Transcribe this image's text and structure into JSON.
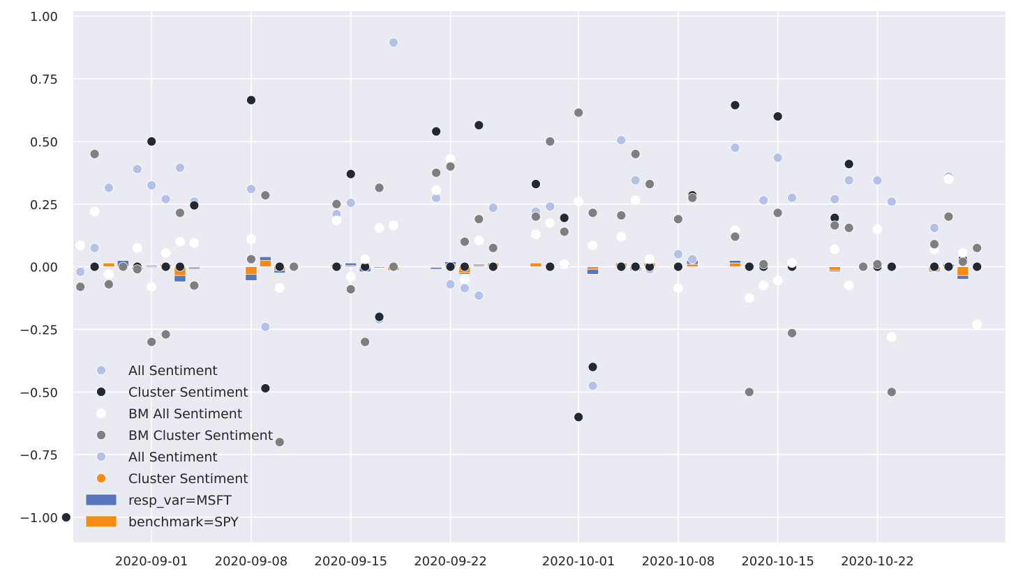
{
  "chart_data": {
    "type": "scatter",
    "title": "",
    "xlabel": "",
    "ylabel": "",
    "grid": true,
    "legend_placement": "lower-left",
    "ylim": [
      -1.1,
      1.02
    ],
    "xlim": [
      "2020-08-26T12:00",
      "2020-10-31T00:00"
    ],
    "y_ticks": [
      1.0,
      0.75,
      0.5,
      0.25,
      0.0,
      -0.25,
      -0.5,
      -0.75,
      -1.0
    ],
    "y_tick_labels": [
      "1.00",
      "0.75",
      "0.50",
      "0.25",
      "0.00",
      "−0.25",
      "−0.50",
      "−0.75",
      "−1.00"
    ],
    "x_ticks": [
      "2020-09-01",
      "2020-09-08",
      "2020-09-15",
      "2020-09-22",
      "2020-10-01",
      "2020-10-08",
      "2020-10-15",
      "2020-10-22"
    ],
    "x_tick_labels": [
      "2020-09-01",
      "2020-09-08",
      "2020-09-15",
      "2020-09-22",
      "2020-10-01",
      "2020-10-08",
      "2020-10-15",
      "2020-10-22"
    ],
    "colors": {
      "all_sentiment": "#b3c1e8",
      "cluster_sentiment": "#232934",
      "bm_all_sentiment": "#ffffff",
      "bm_cluster_sentiment": "#7f7f7f",
      "msft_bar": "#5875bd",
      "spy_bar": "#f58b14",
      "plot_background": "#eaeaf2",
      "grid": "#ffffff"
    },
    "legend": [
      {
        "label": "All Sentiment",
        "kind": "dot",
        "color": "#b3c1e8"
      },
      {
        "label": "Cluster Sentiment",
        "kind": "dot",
        "color": "#232934"
      },
      {
        "label": "BM All Sentiment",
        "kind": "dot",
        "color": "#ffffff"
      },
      {
        "label": "BM Cluster Sentiment",
        "kind": "dot",
        "color": "#7f7f7f"
      },
      {
        "label": "All Sentiment",
        "kind": "dot",
        "color": "#b3c1e8"
      },
      {
        "label": "Cluster Sentiment",
        "kind": "dot",
        "color": "#f58b14"
      },
      {
        "label": "resp_var=MSFT",
        "kind": "bar",
        "color": "#5875bd"
      },
      {
        "label": "benchmark=SPY",
        "kind": "bar",
        "color": "#f58b14"
      }
    ],
    "series": [
      {
        "key": "all_sentiment",
        "points": [
          {
            "x": "2020-08-27",
            "y": -0.02
          },
          {
            "x": "2020-08-28",
            "y": 0.075
          },
          {
            "x": "2020-08-29",
            "y": 0.315
          },
          {
            "x": "2020-08-31",
            "y": 0.39
          },
          {
            "x": "2020-09-01",
            "y": 0.325
          },
          {
            "x": "2020-09-02",
            "y": 0.27
          },
          {
            "x": "2020-09-03",
            "y": 0.395
          },
          {
            "x": "2020-09-04",
            "y": 0.26
          },
          {
            "x": "2020-09-08",
            "y": 0.31
          },
          {
            "x": "2020-09-09",
            "y": -0.24
          },
          {
            "x": "2020-09-14",
            "y": 0.21
          },
          {
            "x": "2020-09-15",
            "y": 0.255
          },
          {
            "x": "2020-09-17",
            "y": -0.21
          },
          {
            "x": "2020-09-18",
            "y": 0.895
          },
          {
            "x": "2020-09-21",
            "y": 0.275
          },
          {
            "x": "2020-09-22",
            "y": -0.07
          },
          {
            "x": "2020-09-23",
            "y": -0.085
          },
          {
            "x": "2020-09-24",
            "y": -0.115
          },
          {
            "x": "2020-09-25",
            "y": 0.235
          },
          {
            "x": "2020-09-28",
            "y": 0.22
          },
          {
            "x": "2020-09-29",
            "y": 0.24
          },
          {
            "x": "2020-10-02",
            "y": -0.475
          },
          {
            "x": "2020-10-04",
            "y": 0.505
          },
          {
            "x": "2020-10-05",
            "y": 0.345
          },
          {
            "x": "2020-10-06",
            "y": -0.01
          },
          {
            "x": "2020-10-08",
            "y": 0.05
          },
          {
            "x": "2020-10-09",
            "y": 0.03
          },
          {
            "x": "2020-10-12",
            "y": 0.475
          },
          {
            "x": "2020-10-14",
            "y": 0.265
          },
          {
            "x": "2020-10-15",
            "y": 0.435
          },
          {
            "x": "2020-10-16",
            "y": 0.275
          },
          {
            "x": "2020-10-19",
            "y": 0.27
          },
          {
            "x": "2020-10-20",
            "y": 0.345
          },
          {
            "x": "2020-10-22",
            "y": 0.345
          },
          {
            "x": "2020-10-23",
            "y": 0.26
          },
          {
            "x": "2020-10-26",
            "y": 0.155
          },
          {
            "x": "2020-10-27",
            "y": 0.36
          }
        ]
      },
      {
        "key": "cluster_sentiment",
        "points": [
          {
            "x": "2020-08-26",
            "y": -1.0
          },
          {
            "x": "2020-08-28",
            "y": 0.0
          },
          {
            "x": "2020-08-31",
            "y": 0.0
          },
          {
            "x": "2020-09-01",
            "y": 0.5
          },
          {
            "x": "2020-09-02",
            "y": 0.0
          },
          {
            "x": "2020-09-03",
            "y": 0.0
          },
          {
            "x": "2020-09-04",
            "y": 0.245
          },
          {
            "x": "2020-09-08",
            "y": 0.665
          },
          {
            "x": "2020-09-09",
            "y": -0.485
          },
          {
            "x": "2020-09-10",
            "y": 0.0
          },
          {
            "x": "2020-09-14",
            "y": 0.0
          },
          {
            "x": "2020-09-15",
            "y": 0.37
          },
          {
            "x": "2020-09-16",
            "y": 0.0
          },
          {
            "x": "2020-09-17",
            "y": -0.2
          },
          {
            "x": "2020-09-21",
            "y": 0.54
          },
          {
            "x": "2020-09-22",
            "y": 0.0
          },
          {
            "x": "2020-09-23",
            "y": 0.0
          },
          {
            "x": "2020-09-24",
            "y": 0.565
          },
          {
            "x": "2020-09-25",
            "y": 0.0
          },
          {
            "x": "2020-09-28",
            "y": 0.33
          },
          {
            "x": "2020-09-29",
            "y": 0.0
          },
          {
            "x": "2020-09-30",
            "y": 0.195
          },
          {
            "x": "2020-10-01",
            "y": -0.6
          },
          {
            "x": "2020-10-02",
            "y": -0.4
          },
          {
            "x": "2020-10-04",
            "y": 0.0
          },
          {
            "x": "2020-10-05",
            "y": 0.0
          },
          {
            "x": "2020-10-06",
            "y": 0.0
          },
          {
            "x": "2020-10-08",
            "y": 0.0
          },
          {
            "x": "2020-10-09",
            "y": 0.285
          },
          {
            "x": "2020-10-12",
            "y": 0.645
          },
          {
            "x": "2020-10-13",
            "y": 0.0
          },
          {
            "x": "2020-10-14",
            "y": 0.0
          },
          {
            "x": "2020-10-15",
            "y": 0.6
          },
          {
            "x": "2020-10-16",
            "y": 0.0
          },
          {
            "x": "2020-10-19",
            "y": 0.195
          },
          {
            "x": "2020-10-20",
            "y": 0.41
          },
          {
            "x": "2020-10-22",
            "y": 0.0
          },
          {
            "x": "2020-10-23",
            "y": 0.0
          },
          {
            "x": "2020-10-26",
            "y": 0.0
          },
          {
            "x": "2020-10-27",
            "y": 0.0
          },
          {
            "x": "2020-10-28",
            "y": 0.03
          },
          {
            "x": "2020-10-29",
            "y": 0.0
          }
        ]
      },
      {
        "key": "bm_all_sentiment",
        "points": [
          {
            "x": "2020-08-27",
            "y": 0.085
          },
          {
            "x": "2020-08-28",
            "y": 0.22
          },
          {
            "x": "2020-08-29",
            "y": -0.03
          },
          {
            "x": "2020-08-31",
            "y": 0.075
          },
          {
            "x": "2020-09-01",
            "y": -0.08
          },
          {
            "x": "2020-09-02",
            "y": 0.055
          },
          {
            "x": "2020-09-03",
            "y": 0.1
          },
          {
            "x": "2020-09-04",
            "y": 0.095
          },
          {
            "x": "2020-09-08",
            "y": 0.11
          },
          {
            "x": "2020-09-10",
            "y": -0.085
          },
          {
            "x": "2020-09-14",
            "y": 0.185
          },
          {
            "x": "2020-09-15",
            "y": -0.04
          },
          {
            "x": "2020-09-16",
            "y": 0.03
          },
          {
            "x": "2020-09-17",
            "y": 0.155
          },
          {
            "x": "2020-09-18",
            "y": 0.165
          },
          {
            "x": "2020-09-21",
            "y": 0.305
          },
          {
            "x": "2020-09-22",
            "y": 0.43
          },
          {
            "x": "2020-09-23",
            "y": -0.05
          },
          {
            "x": "2020-09-24",
            "y": 0.105
          },
          {
            "x": "2020-09-28",
            "y": 0.13
          },
          {
            "x": "2020-09-29",
            "y": 0.175
          },
          {
            "x": "2020-09-30",
            "y": 0.01
          },
          {
            "x": "2020-10-01",
            "y": 0.26
          },
          {
            "x": "2020-10-02",
            "y": 0.085
          },
          {
            "x": "2020-10-04",
            "y": 0.12
          },
          {
            "x": "2020-10-05",
            "y": 0.265
          },
          {
            "x": "2020-10-06",
            "y": 0.03
          },
          {
            "x": "2020-10-08",
            "y": -0.085
          },
          {
            "x": "2020-10-12",
            "y": 0.145
          },
          {
            "x": "2020-10-13",
            "y": -0.125
          },
          {
            "x": "2020-10-14",
            "y": -0.075
          },
          {
            "x": "2020-10-15",
            "y": -0.055
          },
          {
            "x": "2020-10-16",
            "y": 0.015
          },
          {
            "x": "2020-10-19",
            "y": 0.07
          },
          {
            "x": "2020-10-20",
            "y": -0.075
          },
          {
            "x": "2020-10-22",
            "y": 0.15
          },
          {
            "x": "2020-10-23",
            "y": -0.28
          },
          {
            "x": "2020-10-26",
            "y": 0.07
          },
          {
            "x": "2020-10-27",
            "y": 0.35
          },
          {
            "x": "2020-10-28",
            "y": 0.055
          },
          {
            "x": "2020-10-29",
            "y": -0.23
          }
        ]
      },
      {
        "key": "bm_cluster_sentiment",
        "points": [
          {
            "x": "2020-08-27",
            "y": -0.08
          },
          {
            "x": "2020-08-28",
            "y": 0.45
          },
          {
            "x": "2020-08-29",
            "y": -0.07
          },
          {
            "x": "2020-08-30",
            "y": 0.0
          },
          {
            "x": "2020-08-31",
            "y": -0.01
          },
          {
            "x": "2020-09-01",
            "y": -0.3
          },
          {
            "x": "2020-09-02",
            "y": -0.27
          },
          {
            "x": "2020-09-03",
            "y": 0.215
          },
          {
            "x": "2020-09-04",
            "y": -0.075
          },
          {
            "x": "2020-09-08",
            "y": 0.03
          },
          {
            "x": "2020-09-09",
            "y": 0.285
          },
          {
            "x": "2020-09-10",
            "y": -0.7
          },
          {
            "x": "2020-09-11",
            "y": 0.0
          },
          {
            "x": "2020-09-14",
            "y": 0.25
          },
          {
            "x": "2020-09-15",
            "y": -0.09
          },
          {
            "x": "2020-09-16",
            "y": -0.3
          },
          {
            "x": "2020-09-17",
            "y": 0.315
          },
          {
            "x": "2020-09-18",
            "y": 0.0
          },
          {
            "x": "2020-09-21",
            "y": 0.375
          },
          {
            "x": "2020-09-22",
            "y": 0.4
          },
          {
            "x": "2020-09-23",
            "y": 0.1
          },
          {
            "x": "2020-09-24",
            "y": 0.19
          },
          {
            "x": "2020-09-25",
            "y": 0.075
          },
          {
            "x": "2020-09-28",
            "y": 0.2
          },
          {
            "x": "2020-09-29",
            "y": 0.5
          },
          {
            "x": "2020-09-30",
            "y": 0.14
          },
          {
            "x": "2020-10-01",
            "y": 0.615
          },
          {
            "x": "2020-10-02",
            "y": 0.215
          },
          {
            "x": "2020-10-04",
            "y": 0.205
          },
          {
            "x": "2020-10-05",
            "y": 0.45
          },
          {
            "x": "2020-10-06",
            "y": 0.33
          },
          {
            "x": "2020-10-08",
            "y": 0.19
          },
          {
            "x": "2020-10-09",
            "y": 0.275
          },
          {
            "x": "2020-10-12",
            "y": 0.12
          },
          {
            "x": "2020-10-13",
            "y": -0.5
          },
          {
            "x": "2020-10-14",
            "y": 0.01
          },
          {
            "x": "2020-10-15",
            "y": 0.215
          },
          {
            "x": "2020-10-16",
            "y": -0.265
          },
          {
            "x": "2020-10-19",
            "y": 0.165
          },
          {
            "x": "2020-10-20",
            "y": 0.155
          },
          {
            "x": "2020-10-21",
            "y": 0.0
          },
          {
            "x": "2020-10-22",
            "y": 0.01
          },
          {
            "x": "2020-10-23",
            "y": -0.5
          },
          {
            "x": "2020-10-26",
            "y": 0.09
          },
          {
            "x": "2020-10-27",
            "y": 0.2
          },
          {
            "x": "2020-10-28",
            "y": 0.02
          },
          {
            "x": "2020-10-29",
            "y": 0.075
          }
        ]
      }
    ],
    "bars": [
      {
        "x": "2020-08-27",
        "msft": 0.0,
        "spy": 0.0
      },
      {
        "x": "2020-08-29",
        "msft": 0.01,
        "spy": 0.015
      },
      {
        "x": "2020-08-30",
        "msft": 0.025,
        "spy": 0.0
      },
      {
        "x": "2020-08-31",
        "msft": -0.01,
        "spy": 0.0
      },
      {
        "x": "2020-09-01",
        "msft": 0.005,
        "spy": 0.0
      },
      {
        "x": "2020-09-02",
        "msft": 0.01,
        "spy": 0.01
      },
      {
        "x": "2020-09-03",
        "msft": -0.06,
        "spy": -0.035
      },
      {
        "x": "2020-09-04",
        "msft": -0.01,
        "spy": -0.005
      },
      {
        "x": "2020-09-08",
        "msft": -0.055,
        "spy": -0.03
      },
      {
        "x": "2020-09-09",
        "msft": 0.04,
        "spy": 0.025
      },
      {
        "x": "2020-09-10",
        "msft": -0.025,
        "spy": -0.015
      },
      {
        "x": "2020-09-14",
        "msft": 0.01,
        "spy": 0.01
      },
      {
        "x": "2020-09-15",
        "msft": 0.015,
        "spy": 0.005
      },
      {
        "x": "2020-09-16",
        "msft": -0.02,
        "spy": -0.005
      },
      {
        "x": "2020-09-17",
        "msft": -0.005,
        "spy": -0.005
      },
      {
        "x": "2020-09-18",
        "msft": -0.015,
        "spy": -0.015
      },
      {
        "x": "2020-09-21",
        "msft": -0.01,
        "spy": 0.0
      },
      {
        "x": "2020-09-22",
        "msft": 0.02,
        "spy": 0.01
      },
      {
        "x": "2020-09-23",
        "msft": -0.03,
        "spy": -0.025
      },
      {
        "x": "2020-09-24",
        "msft": 0.01,
        "spy": 0.005
      },
      {
        "x": "2020-09-25",
        "msft": 0.015,
        "spy": 0.015
      },
      {
        "x": "2020-09-28",
        "msft": 0.015,
        "spy": 0.015
      },
      {
        "x": "2020-09-30",
        "msft": 0.005,
        "spy": 0.005
      },
      {
        "x": "2020-10-02",
        "msft": -0.03,
        "spy": -0.01
      },
      {
        "x": "2020-10-04",
        "msft": 0.015,
        "spy": 0.015
      },
      {
        "x": "2020-10-05",
        "msft": -0.015,
        "spy": -0.01
      },
      {
        "x": "2020-10-06",
        "msft": 0.01,
        "spy": 0.015
      },
      {
        "x": "2020-10-09",
        "msft": 0.025,
        "spy": 0.01
      },
      {
        "x": "2020-10-12",
        "msft": 0.025,
        "spy": 0.015
      },
      {
        "x": "2020-10-13",
        "msft": 0.005,
        "spy": 0.0
      },
      {
        "x": "2020-10-19",
        "msft": -0.02,
        "spy": -0.015
      },
      {
        "x": "2020-10-26",
        "msft": -0.02,
        "spy": -0.015
      },
      {
        "x": "2020-10-27",
        "msft": 0.01,
        "spy": 0.0
      },
      {
        "x": "2020-10-28",
        "msft": -0.05,
        "spy": -0.035
      }
    ]
  }
}
